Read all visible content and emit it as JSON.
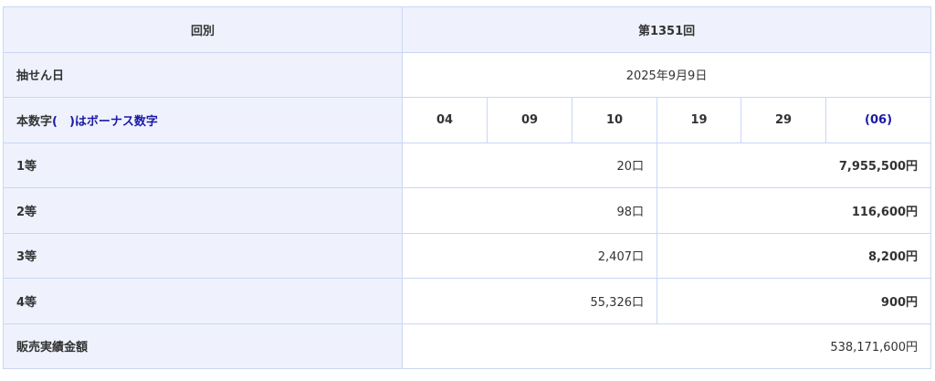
{
  "header": {
    "label": "回別",
    "value": "第1351回"
  },
  "draw_date": {
    "label": "抽せん日",
    "value": "2025年9月9日"
  },
  "numbers": {
    "label_main": "本数字",
    "label_bonus": "(　)はボーナス数字",
    "values": [
      "04",
      "09",
      "10",
      "19",
      "29"
    ],
    "bonus": "(06)"
  },
  "prizes": [
    {
      "rank": "1等",
      "count": "20口",
      "amount": "7,955,500円"
    },
    {
      "rank": "2等",
      "count": "98口",
      "amount": "116,600円"
    },
    {
      "rank": "3等",
      "count": "2,407口",
      "amount": "8,200円"
    },
    {
      "rank": "4等",
      "count": "55,326口",
      "amount": "900円"
    }
  ],
  "sales": {
    "label": "販売実績金額",
    "value": "538,171,600円"
  },
  "colors": {
    "header_bg": "#eff2fd",
    "border": "#c9d6f5",
    "bonus": "#1a1aa6"
  }
}
